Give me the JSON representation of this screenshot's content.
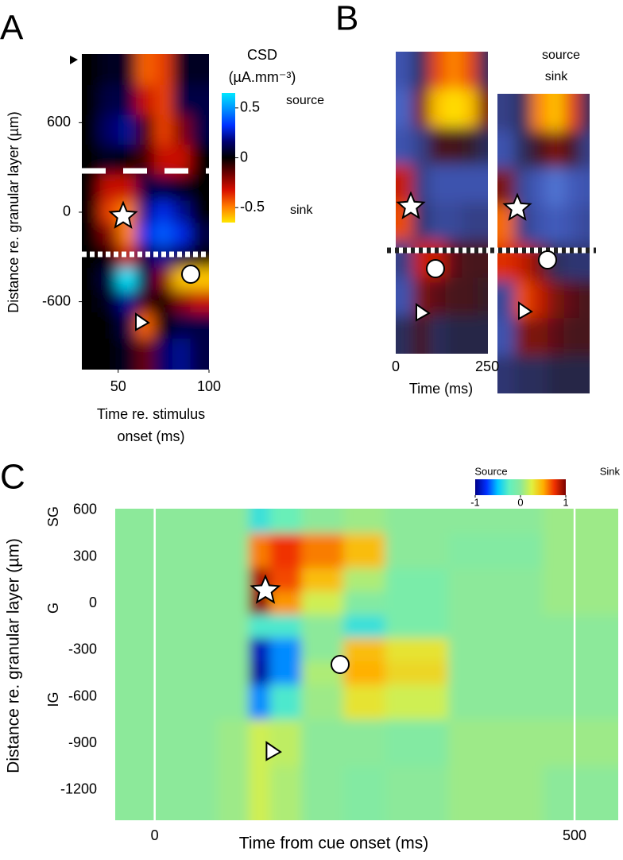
{
  "chart_data": [
    {
      "type": "heatmap",
      "panel": "A",
      "xlabel": [
        "Time re. stimulus",
        "onset (ms)"
      ],
      "ylabel": "Distance re. granular layer (µm)",
      "xlim": [
        30,
        100
      ],
      "xticks": [
        50,
        100
      ],
      "ylim": [
        -1055,
        1060
      ],
      "yticks": [
        600,
        0,
        -600
      ],
      "x": [
        35,
        45,
        55,
        65,
        75,
        85,
        95
      ],
      "y": [
        950,
        750,
        550,
        350,
        150,
        0,
        -150,
        -300,
        -450,
        -600,
        -750,
        -950
      ],
      "z": [
        [
          0,
          0.05,
          0.05,
          -0.45,
          -0.4,
          0.05,
          0.05
        ],
        [
          0,
          0.1,
          0.1,
          -0.3,
          -0.4,
          0.1,
          0.1
        ],
        [
          0,
          0.15,
          0.2,
          -0.1,
          -0.4,
          -0.2,
          0.1
        ],
        [
          0,
          0.05,
          0,
          -0.1,
          -0.3,
          -0.3,
          0
        ],
        [
          0,
          -0.3,
          -0.3,
          0.1,
          0.1,
          0.05,
          0
        ],
        [
          0,
          -0.4,
          -0.5,
          0.2,
          0.3,
          0.2,
          0
        ],
        [
          0,
          -0.2,
          -0.5,
          0.3,
          0.4,
          0.3,
          0.1
        ],
        [
          0,
          0,
          -0.3,
          0.1,
          0.2,
          0.1,
          0
        ],
        [
          0,
          0.1,
          0.65,
          0.1,
          -0.2,
          -0.6,
          -0.6
        ],
        [
          0,
          0.05,
          0.2,
          -0.1,
          0,
          -0.2,
          -0.3
        ],
        [
          0,
          0,
          0.1,
          -0.45,
          0,
          0.1,
          0.1
        ],
        [
          0,
          0,
          0.05,
          -0.15,
          0.15,
          0.2,
          0.1
        ]
      ],
      "colormap": [
        "#ffe600",
        "#ff7a00",
        "#d81000",
        "#700000",
        "#000000",
        "#000070",
        "#0030ff",
        "#0090ff",
        "#00e8ff"
      ],
      "colorbar": {
        "title": [
          "CSD",
          "(µA.mm⁻³)"
        ],
        "lim": [
          -0.65,
          0.65
        ],
        "ticks": [
          0.5,
          0,
          -0.5
        ],
        "labels": [
          {
            "text": "source",
            "color": "#1f5fe0"
          },
          {
            "text": "sink",
            "color": "#f07010"
          }
        ]
      }
    },
    {
      "type": "heatmap-pair",
      "panel": "B",
      "xlabel": "Time (ms)",
      "xlim": [
        0,
        252
      ],
      "xticks": [
        0,
        250
      ],
      "x": [
        25,
        70,
        115,
        160,
        205,
        245
      ],
      "zlim": [
        -0.65,
        0.65
      ],
      "colormap": [
        "#ffe000",
        "#ff8000",
        "#d82000",
        "#601010",
        "#202030",
        "#303878",
        "#4058b8",
        "#5070d0",
        "#60a0e8"
      ],
      "labels": [
        {
          "text": "source",
          "color": "#1f5fe0"
        },
        {
          "text": "sink",
          "color": "#f07010"
        }
      ],
      "panels": [
        {
          "z": [
            [
              0.3,
              0.1,
              -0.4,
              -0.5,
              -0.4,
              0.1
            ],
            [
              0.4,
              -0.2,
              -0.6,
              -0.65,
              -0.6,
              -0.2
            ],
            [
              0.3,
              0.2,
              -0.1,
              -0.1,
              -0.05,
              0.1
            ],
            [
              -0.3,
              0.2,
              0.3,
              0.3,
              0.3,
              0.3
            ],
            [
              -0.4,
              0.15,
              0.25,
              0.25,
              0.2,
              0.2
            ],
            [
              0.2,
              -0.3,
              -0.3,
              -0.15,
              -0.1,
              -0.1
            ],
            [
              0.3,
              -0.2,
              -0.15,
              -0.1,
              -0.1,
              -0.05
            ],
            [
              0.1,
              -0.1,
              0.1,
              0.05,
              0.05,
              0.05
            ]
          ]
        },
        {
          "z": [
            [
              0.2,
              0.1,
              -0.5,
              -0.6,
              -0.4,
              0.1
            ],
            [
              0.3,
              0.1,
              -0.1,
              -0.2,
              -0.1,
              0.2
            ],
            [
              -0.2,
              0.25,
              0.35,
              0.5,
              0.35,
              0.3
            ],
            [
              -0.45,
              0.2,
              0.3,
              0.35,
              0.3,
              0.25
            ],
            [
              -0.35,
              -0.3,
              -0.2,
              0.1,
              0.15,
              0.15
            ],
            [
              0.25,
              -0.4,
              -0.3,
              -0.2,
              -0.15,
              -0.1
            ],
            [
              0.3,
              -0.2,
              -0.2,
              -0.15,
              -0.1,
              -0.1
            ],
            [
              0.15,
              0.1,
              0.1,
              0.05,
              0.05,
              0.05
            ]
          ]
        }
      ]
    },
    {
      "type": "heatmap",
      "panel": "C",
      "xlabel": "Time from cue onset (ms)",
      "ylabel": "Distance re. granular layer (µm)",
      "layers": [
        "SG",
        "G",
        "IG"
      ],
      "xlim": [
        -47,
        552
      ],
      "xticks": [
        0,
        500
      ],
      "ylim": [
        -1395,
        610
      ],
      "yticks": [
        600,
        300,
        0,
        -300,
        -600,
        -900,
        -1200
      ],
      "x": [
        -25,
        50,
        100,
        125,
        150,
        200,
        250,
        300,
        400,
        525
      ],
      "y": [
        600,
        300,
        150,
        0,
        -150,
        -300,
        -450,
        -600,
        -900,
        -1200
      ],
      "z": [
        [
          0,
          0,
          0,
          -0.35,
          -0.2,
          0,
          0.05,
          0,
          0,
          0.05
        ],
        [
          0,
          0,
          0,
          0.6,
          0.75,
          0.6,
          0.45,
          0,
          -0.05,
          0.05
        ],
        [
          0,
          0,
          0,
          0.9,
          0.7,
          0.45,
          0.1,
          -0.1,
          0,
          0.05
        ],
        [
          0,
          0,
          0,
          0.95,
          0.55,
          0.2,
          -0.05,
          -0.1,
          0,
          0.05
        ],
        [
          0,
          0,
          0,
          -0.3,
          -0.3,
          0,
          -0.35,
          -0.1,
          0,
          0
        ],
        [
          0,
          0,
          0,
          -0.9,
          -0.6,
          0,
          0.45,
          0.3,
          0,
          0
        ],
        [
          0,
          0,
          0,
          -0.95,
          -0.6,
          0.1,
          0.5,
          0.35,
          0,
          0
        ],
        [
          0,
          0,
          0,
          -0.6,
          -0.3,
          0.05,
          0.3,
          0.2,
          0,
          0
        ],
        [
          0,
          0,
          0.05,
          0.2,
          0.15,
          0,
          0,
          -0.05,
          0.05,
          0.05
        ],
        [
          0,
          0,
          0.05,
          0.2,
          0.1,
          0,
          -0.05,
          0,
          0.05,
          0
        ]
      ],
      "colormap": [
        "#00008a",
        "#0030ff",
        "#00c8ff",
        "#60f0c0",
        "#8ce99a",
        "#e0f040",
        "#ffb000",
        "#f03000",
        "#7a0000"
      ],
      "colorbar": {
        "lim": [
          -1,
          1
        ],
        "ticks": [
          -1,
          0,
          1
        ],
        "ends": [
          "Source",
          "Sink"
        ]
      }
    }
  ]
}
